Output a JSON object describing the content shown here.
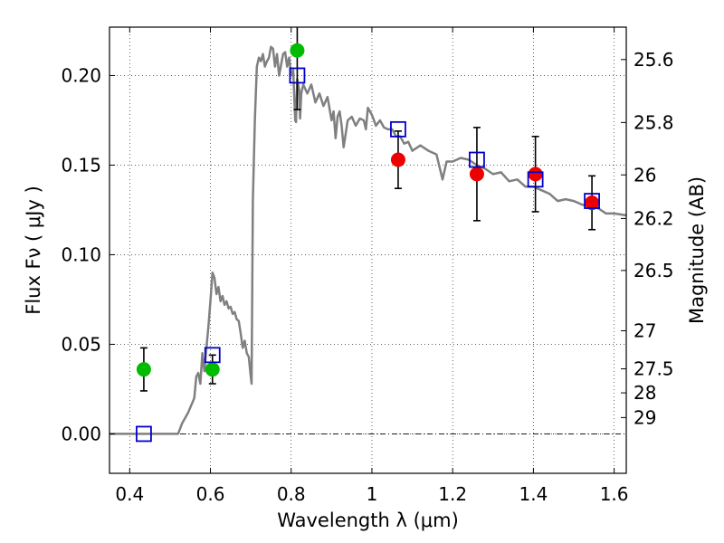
{
  "chart_data": {
    "type": "scatter",
    "xlabel": "Wavelength  λ (μm)",
    "ylabel": "Flux  Fν  ( μJy )",
    "ylabel_right": "Magnitude (AB)",
    "xlim": [
      0.35,
      1.63
    ],
    "ylim": [
      -0.022,
      0.227
    ],
    "grid": true,
    "x_ticks": [
      {
        "value": 0.4,
        "label": "0.4"
      },
      {
        "value": 0.6,
        "label": "0.6"
      },
      {
        "value": 0.8,
        "label": "0.8"
      },
      {
        "value": 1.0,
        "label": "1"
      },
      {
        "value": 1.2,
        "label": "1.2"
      },
      {
        "value": 1.4,
        "label": "1.4"
      },
      {
        "value": 1.6,
        "label": "1.6"
      }
    ],
    "y_ticks": [
      {
        "value": 0.0,
        "label": "0.00"
      },
      {
        "value": 0.05,
        "label": "0.05"
      },
      {
        "value": 0.1,
        "label": "0.10"
      },
      {
        "value": 0.15,
        "label": "0.15"
      },
      {
        "value": 0.2,
        "label": "0.20"
      }
    ],
    "mag_ticks": [
      {
        "value": 25.6,
        "label": "25.6"
      },
      {
        "value": 25.8,
        "label": "25.8"
      },
      {
        "value": 26.0,
        "label": "26"
      },
      {
        "value": 26.2,
        "label": "26.2"
      },
      {
        "value": 26.5,
        "label": "26.5"
      },
      {
        "value": 27.0,
        "label": "27"
      },
      {
        "value": 27.5,
        "label": "27.5"
      },
      {
        "value": 28.0,
        "label": "28"
      },
      {
        "value": 29.0,
        "label": "29"
      }
    ],
    "series": [
      {
        "kind": "line",
        "color": "#808080",
        "points": [
          [
            0.35,
            0.0
          ],
          [
            0.52,
            0.0
          ],
          [
            0.53,
            0.006
          ],
          [
            0.545,
            0.012
          ],
          [
            0.56,
            0.02
          ],
          [
            0.565,
            0.032
          ],
          [
            0.57,
            0.034
          ],
          [
            0.575,
            0.028
          ],
          [
            0.58,
            0.045
          ],
          [
            0.585,
            0.035
          ],
          [
            0.59,
            0.048
          ],
          [
            0.595,
            0.06
          ],
          [
            0.6,
            0.074
          ],
          [
            0.605,
            0.09
          ],
          [
            0.61,
            0.087
          ],
          [
            0.615,
            0.078
          ],
          [
            0.62,
            0.082
          ],
          [
            0.625,
            0.074
          ],
          [
            0.63,
            0.077
          ],
          [
            0.635,
            0.072
          ],
          [
            0.64,
            0.074
          ],
          [
            0.645,
            0.07
          ],
          [
            0.65,
            0.071
          ],
          [
            0.655,
            0.067
          ],
          [
            0.66,
            0.068
          ],
          [
            0.665,
            0.064
          ],
          [
            0.67,
            0.063
          ],
          [
            0.675,
            0.056
          ],
          [
            0.68,
            0.048
          ],
          [
            0.685,
            0.052
          ],
          [
            0.69,
            0.045
          ],
          [
            0.695,
            0.043
          ],
          [
            0.7,
            0.032
          ],
          [
            0.702,
            0.028
          ],
          [
            0.705,
            0.13
          ],
          [
            0.71,
            0.175
          ],
          [
            0.715,
            0.205
          ],
          [
            0.72,
            0.21
          ],
          [
            0.725,
            0.208
          ],
          [
            0.73,
            0.212
          ],
          [
            0.735,
            0.205
          ],
          [
            0.74,
            0.208
          ],
          [
            0.745,
            0.21
          ],
          [
            0.75,
            0.216
          ],
          [
            0.755,
            0.215
          ],
          [
            0.76,
            0.205
          ],
          [
            0.765,
            0.212
          ],
          [
            0.77,
            0.2
          ],
          [
            0.775,
            0.206
          ],
          [
            0.78,
            0.212
          ],
          [
            0.785,
            0.213
          ],
          [
            0.79,
            0.205
          ],
          [
            0.795,
            0.21
          ],
          [
            0.8,
            0.2
          ],
          [
            0.805,
            0.203
          ],
          [
            0.81,
            0.175
          ],
          [
            0.812,
            0.174
          ],
          [
            0.815,
            0.198
          ],
          [
            0.82,
            0.192
          ],
          [
            0.822,
            0.176
          ],
          [
            0.825,
            0.19
          ],
          [
            0.83,
            0.195
          ],
          [
            0.84,
            0.19
          ],
          [
            0.85,
            0.195
          ],
          [
            0.86,
            0.185
          ],
          [
            0.87,
            0.19
          ],
          [
            0.88,
            0.183
          ],
          [
            0.89,
            0.188
          ],
          [
            0.9,
            0.175
          ],
          [
            0.905,
            0.18
          ],
          [
            0.91,
            0.165
          ],
          [
            0.915,
            0.177
          ],
          [
            0.92,
            0.18
          ],
          [
            0.925,
            0.172
          ],
          [
            0.93,
            0.16
          ],
          [
            0.94,
            0.175
          ],
          [
            0.95,
            0.177
          ],
          [
            0.96,
            0.172
          ],
          [
            0.97,
            0.176
          ],
          [
            0.98,
            0.175
          ],
          [
            0.985,
            0.17
          ],
          [
            0.99,
            0.182
          ],
          [
            1.0,
            0.178
          ],
          [
            1.01,
            0.172
          ],
          [
            1.02,
            0.175
          ],
          [
            1.03,
            0.171
          ],
          [
            1.04,
            0.17
          ],
          [
            1.05,
            0.17
          ],
          [
            1.06,
            0.166
          ],
          [
            1.07,
            0.166
          ],
          [
            1.08,
            0.162
          ],
          [
            1.09,
            0.163
          ],
          [
            1.1,
            0.158
          ],
          [
            1.12,
            0.161
          ],
          [
            1.14,
            0.158
          ],
          [
            1.16,
            0.156
          ],
          [
            1.175,
            0.142
          ],
          [
            1.185,
            0.152
          ],
          [
            1.2,
            0.152
          ],
          [
            1.22,
            0.154
          ],
          [
            1.24,
            0.153
          ],
          [
            1.26,
            0.15
          ],
          [
            1.28,
            0.148
          ],
          [
            1.3,
            0.145
          ],
          [
            1.32,
            0.146
          ],
          [
            1.34,
            0.141
          ],
          [
            1.36,
            0.142
          ],
          [
            1.38,
            0.138
          ],
          [
            1.4,
            0.138
          ],
          [
            1.42,
            0.136
          ],
          [
            1.44,
            0.134
          ],
          [
            1.46,
            0.13
          ],
          [
            1.48,
            0.131
          ],
          [
            1.5,
            0.13
          ],
          [
            1.52,
            0.128
          ],
          [
            1.54,
            0.127
          ],
          [
            1.56,
            0.126
          ],
          [
            1.58,
            0.123
          ],
          [
            1.6,
            0.123
          ],
          [
            1.63,
            0.122
          ]
        ]
      },
      {
        "kind": "scatter",
        "marker": "square",
        "color": "#0000cc",
        "points": [
          [
            0.435,
            0.0
          ],
          [
            0.605,
            0.044
          ],
          [
            0.815,
            0.2
          ],
          [
            1.065,
            0.17
          ],
          [
            1.26,
            0.153
          ],
          [
            1.405,
            0.142
          ],
          [
            1.545,
            0.13
          ]
        ]
      },
      {
        "kind": "scatter",
        "marker": "circle",
        "color": "#00bb00",
        "points": [
          [
            0.435,
            0.036
          ],
          [
            0.605,
            0.036
          ],
          [
            0.815,
            0.214
          ]
        ],
        "errors": [
          0.012,
          0.008,
          0.033
        ]
      },
      {
        "kind": "scatter",
        "marker": "circle",
        "color": "#ee0000",
        "points": [
          [
            1.065,
            0.153
          ],
          [
            1.26,
            0.145
          ],
          [
            1.405,
            0.145
          ],
          [
            1.545,
            0.129
          ]
        ],
        "errors": [
          0.016,
          0.026,
          0.021,
          0.015
        ]
      }
    ]
  }
}
